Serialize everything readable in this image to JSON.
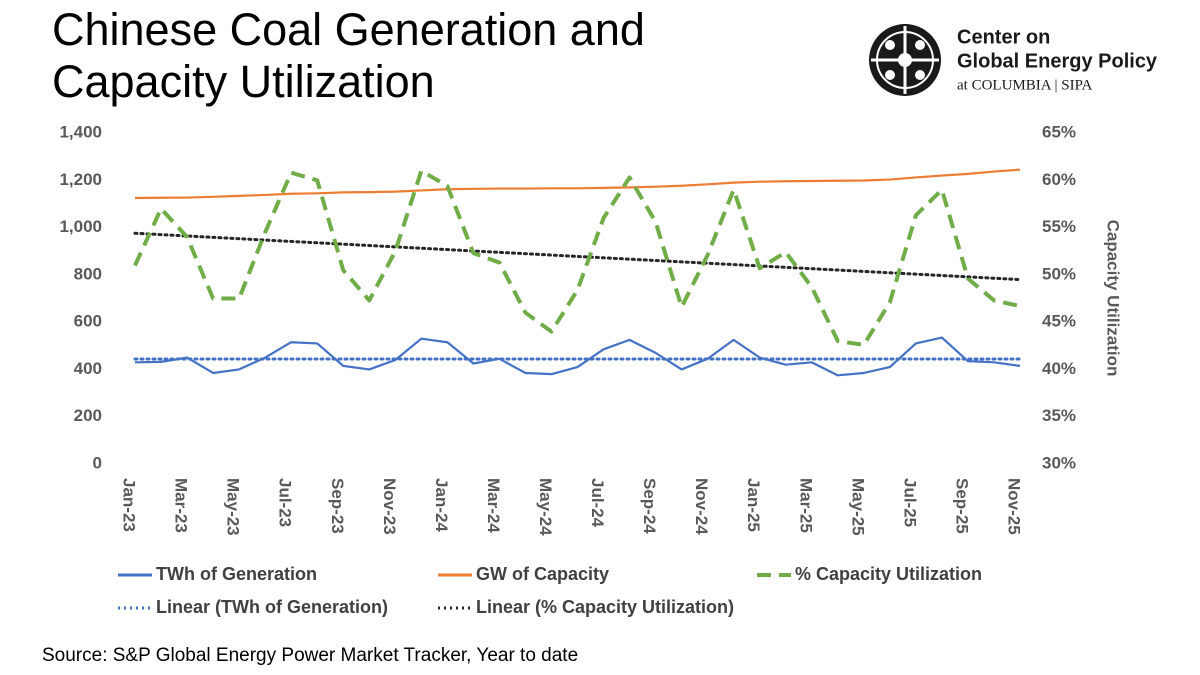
{
  "title": "Chinese Coal Generation and Capacity Utilization",
  "logo": {
    "line1": "Center on",
    "line2": "Global Energy Policy",
    "line3": "at COLUMBIA | SIPA"
  },
  "source": "Source: S&P Global Energy Power Market Tracker, Year to date",
  "chart_data": {
    "type": "line",
    "categories": [
      "Jan-23",
      null,
      "Mar-23",
      null,
      "May-23",
      null,
      "Jul-23",
      null,
      "Sep-23",
      null,
      "Nov-23",
      null,
      "Jan-24",
      null,
      "Mar-24",
      null,
      "May-24",
      null,
      "Jul-24",
      null,
      "Sep-24",
      null,
      "Nov-24",
      null,
      "Jan-25",
      null,
      "Mar-25",
      null,
      "May-25",
      null,
      "Jul-25",
      null,
      "Sep-25",
      null,
      "Nov-25"
    ],
    "series": [
      {
        "name": "TWh of Generation",
        "color": "#4472c4",
        "style": "solid",
        "axis": "y",
        "values": [
          430,
          432,
          450,
          385,
          400,
          450,
          515,
          510,
          415,
          400,
          440,
          530,
          515,
          425,
          445,
          385,
          380,
          410,
          485,
          525,
          470,
          400,
          445,
          525,
          450,
          420,
          430,
          375,
          385,
          410,
          510,
          535,
          435,
          430,
          415
        ]
      },
      {
        "name": "GW of Capacity",
        "color": "#ed7d31",
        "style": "solid",
        "axis": "y",
        "values": [
          1125,
          1126,
          1127,
          1130,
          1134,
          1138,
          1143,
          1145,
          1149,
          1150,
          1152,
          1157,
          1162,
          1164,
          1165,
          1165,
          1166,
          1166,
          1168,
          1170,
          1173,
          1177,
          1183,
          1190,
          1194,
          1196,
          1197,
          1198,
          1199,
          1203,
          1212,
          1220,
          1227,
          1237,
          1245
        ]
      },
      {
        "name": "% Capacity Utilization",
        "color": "#70ad47",
        "style": "dashed",
        "axis": "y2",
        "values": [
          51,
          57,
          54,
          47.5,
          47.5,
          54.5,
          60.8,
          60,
          50.5,
          47.3,
          52.5,
          61,
          59.4,
          52.3,
          51.3,
          46,
          44,
          48.4,
          56,
          60.3,
          55.6,
          46.6,
          52.1,
          59,
          50.7,
          52.4,
          48.7,
          43,
          42.6,
          47.1,
          56.3,
          59,
          49.6,
          47.3,
          46.7
        ]
      }
    ],
    "trendlines": [
      {
        "name": "Linear (TWh of Generation)",
        "color": "#4472c4",
        "style": "dotted",
        "axis": "y",
        "start": 444,
        "end": 444
      },
      {
        "name": "Linear (% Capacity Utilization)",
        "color": "#262626",
        "style": "dotted",
        "axis": "y2",
        "start": 54.4,
        "end": 49.5
      }
    ],
    "ylim": [
      0,
      1400
    ],
    "yticks": [
      0,
      200,
      400,
      600,
      800,
      {
        "value": 1000,
        "label": "1,000"
      },
      {
        "value": 1200,
        "label": "1,200"
      },
      {
        "value": 1400,
        "label": "1,400"
      }
    ],
    "y2label": "Capacity Utilization",
    "y2lim": [
      30,
      65
    ],
    "y2ticks": [
      {
        "value": 30,
        "label": "30%"
      },
      {
        "value": 35,
        "label": "35%"
      },
      {
        "value": 40,
        "label": "40%"
      },
      {
        "value": 45,
        "label": "45%"
      },
      {
        "value": 50,
        "label": "50%"
      },
      {
        "value": 55,
        "label": "55%"
      },
      {
        "value": 60,
        "label": "60%"
      },
      {
        "value": 65,
        "label": "65%"
      }
    ],
    "grid": false,
    "legend": "bottom"
  }
}
